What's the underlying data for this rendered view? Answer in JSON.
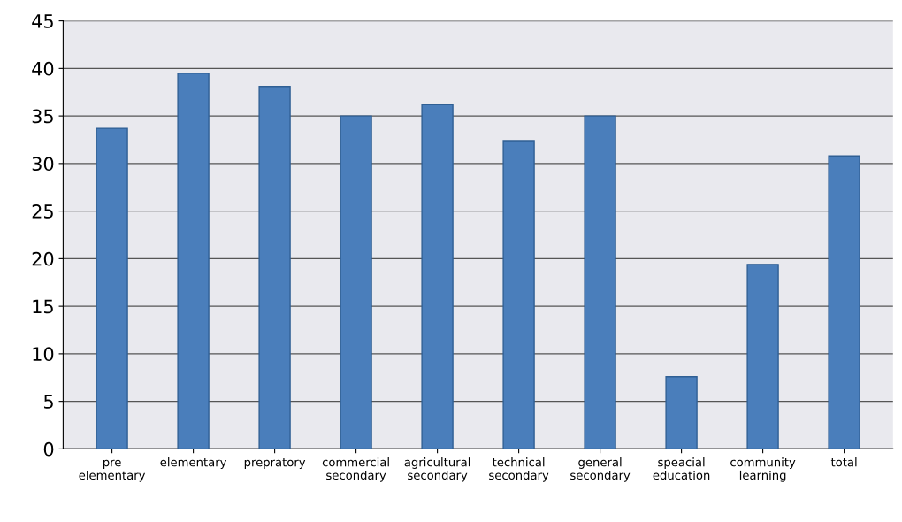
{
  "chart_data": {
    "type": "bar",
    "categories": [
      "pre\nelementary",
      "elementary",
      "prepratory",
      "commercial\nsecondary",
      "agricultural\nsecondary",
      "technical\nsecondary",
      "general\nsecondary",
      "speacial\neducation",
      "community\nlearning",
      "total"
    ],
    "values": [
      33.7,
      39.5,
      38.1,
      35.0,
      36.2,
      32.4,
      35.0,
      7.6,
      19.4,
      30.8
    ],
    "color": "#4a7ebb",
    "ylim": [
      0,
      45
    ],
    "yticks": [
      0,
      5,
      10,
      15,
      20,
      25,
      30,
      35,
      40,
      45
    ],
    "grid": "y",
    "legend": false
  }
}
